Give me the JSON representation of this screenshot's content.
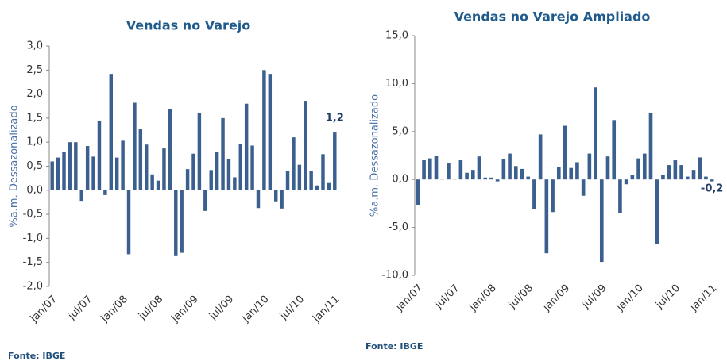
{
  "chart_data": [
    {
      "type": "bar",
      "title": "Vendas no Varejo",
      "ylabel": "%a.m. Dessazonalizado",
      "source": "Fonte: IBGE",
      "color": "#3b5f8e",
      "categories": [
        "jan/07",
        null,
        null,
        null,
        null,
        null,
        "jul/07",
        null,
        null,
        null,
        null,
        null,
        "jan/08",
        null,
        null,
        null,
        null,
        null,
        "jul/08",
        null,
        null,
        null,
        null,
        null,
        "jan/09",
        null,
        null,
        null,
        null,
        null,
        "jul/09",
        null,
        null,
        null,
        null,
        null,
        "jan/10",
        null,
        null,
        null,
        null,
        null,
        "jul/10",
        null,
        null,
        null,
        null,
        null,
        "jan/11"
      ],
      "values": [
        0.6,
        0.68,
        0.8,
        1.0,
        1.0,
        -0.22,
        0.92,
        0.7,
        1.45,
        -0.1,
        2.42,
        0.68,
        1.03,
        -1.33,
        1.82,
        1.28,
        0.95,
        0.33,
        0.2,
        0.87,
        1.68,
        -1.37,
        -1.3,
        0.44,
        0.76,
        1.6,
        -0.43,
        0.42,
        0.8,
        1.5,
        0.65,
        0.27,
        0.97,
        1.8,
        0.93,
        -0.37,
        2.5,
        2.42,
        -0.23,
        -0.38,
        0.4,
        1.1,
        0.53,
        1.86,
        0.4,
        0.1,
        0.75,
        0.15,
        1.2
      ],
      "value_labels": [
        null,
        null,
        null,
        null,
        null,
        null,
        null,
        null,
        null,
        null,
        null,
        null,
        null,
        null,
        null,
        null,
        null,
        null,
        null,
        null,
        null,
        null,
        null,
        null,
        null,
        null,
        null,
        null,
        null,
        null,
        null,
        null,
        null,
        null,
        null,
        null,
        null,
        null,
        null,
        null,
        null,
        null,
        null,
        null,
        null,
        null,
        null,
        null,
        "1,2"
      ],
      "ylim": [
        -2,
        3
      ],
      "yticks": [
        {
          "value": -2,
          "label": "-2,0"
        },
        {
          "value": -1.5,
          "label": "-1,5"
        },
        {
          "value": -1,
          "label": "-1,0"
        },
        {
          "value": -0.5,
          "label": "-0,5"
        },
        {
          "value": 0,
          "label": "0,0"
        },
        {
          "value": 0.5,
          "label": "0,5"
        },
        {
          "value": 1,
          "label": "1,0"
        },
        {
          "value": 1.5,
          "label": "1,5"
        },
        {
          "value": 2,
          "label": "2,0"
        },
        {
          "value": 2.5,
          "label": "2,5"
        },
        {
          "value": 3,
          "label": "3,0"
        }
      ]
    },
    {
      "type": "bar",
      "title": "Vendas no Varejo Ampliado",
      "ylabel": "%a.m. Dessazonalizado",
      "source": "Fonte: IBGE",
      "color": "#3b5f8e",
      "categories": [
        "jan/07",
        null,
        null,
        null,
        null,
        null,
        "jul/07",
        null,
        null,
        null,
        null,
        null,
        "jan/08",
        null,
        null,
        null,
        null,
        null,
        "jul/08",
        null,
        null,
        null,
        null,
        null,
        "jan/09",
        null,
        null,
        null,
        null,
        null,
        "jul/09",
        null,
        null,
        null,
        null,
        null,
        "jan/10",
        null,
        null,
        null,
        null,
        null,
        "jul/10",
        null,
        null,
        null,
        null,
        null,
        "jan/11"
      ],
      "values": [
        -2.7,
        2.0,
        2.2,
        2.5,
        0.1,
        1.7,
        0.1,
        2.0,
        0.7,
        1.0,
        2.4,
        0.2,
        0.2,
        -0.2,
        2.1,
        2.7,
        1.4,
        1.1,
        0.3,
        -3.1,
        4.7,
        -7.7,
        -3.4,
        1.3,
        5.6,
        1.2,
        1.8,
        -1.7,
        2.7,
        9.6,
        -8.6,
        2.4,
        6.2,
        -3.5,
        -0.5,
        0.5,
        2.2,
        2.7,
        6.9,
        -6.7,
        0.5,
        1.5,
        2.0,
        1.5,
        0.3,
        1.0,
        2.3,
        0.3,
        -0.2
      ],
      "value_labels": [
        null,
        null,
        null,
        null,
        null,
        null,
        null,
        null,
        null,
        null,
        null,
        null,
        null,
        null,
        null,
        null,
        null,
        null,
        null,
        null,
        null,
        null,
        null,
        null,
        null,
        null,
        null,
        null,
        null,
        null,
        null,
        null,
        null,
        null,
        null,
        null,
        null,
        null,
        null,
        null,
        null,
        null,
        null,
        null,
        null,
        null,
        null,
        null,
        "-0,2"
      ],
      "ylim": [
        -10,
        15
      ],
      "yticks": [
        {
          "value": -10,
          "label": "-10,0"
        },
        {
          "value": -5,
          "label": "-5,0"
        },
        {
          "value": 0,
          "label": "0,0"
        },
        {
          "value": 5,
          "label": "5,0"
        },
        {
          "value": 10,
          "label": "10,0"
        },
        {
          "value": 15,
          "label": "15,0"
        }
      ]
    }
  ]
}
